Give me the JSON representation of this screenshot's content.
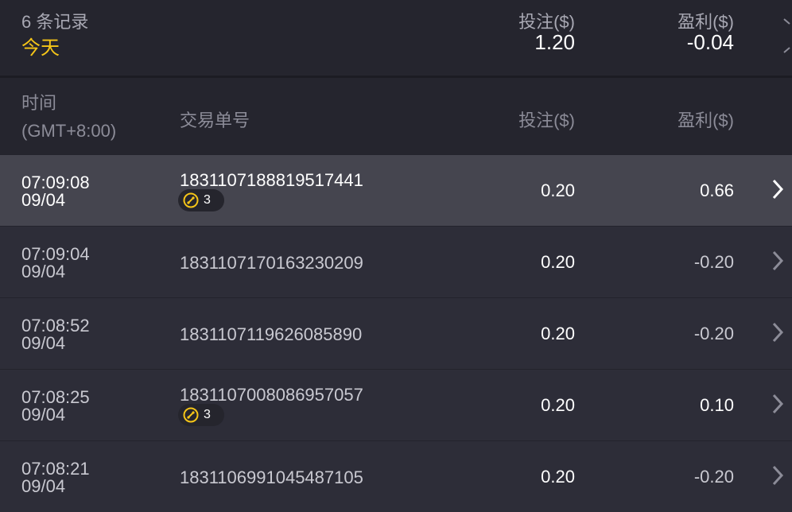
{
  "summary": {
    "count": "6 条记录",
    "period": "今天",
    "bet_label": "投注($)",
    "bet_value": "1.20",
    "profit_label": "盈利($)",
    "profit_value": "-0.04"
  },
  "columns": {
    "time": "时间",
    "timezone": "(GMT+8:00)",
    "order": "交易单号",
    "bet": "投注($)",
    "profit": "盈利($)"
  },
  "accent": "#f5c518",
  "rows": [
    {
      "time": "07:09:08",
      "date": "09/04",
      "order": "1831107188819517441",
      "badge": "3",
      "bet": "0.20",
      "profit": "0.66"
    },
    {
      "time": "07:09:04",
      "date": "09/04",
      "order": "1831107170163230209",
      "bet": "0.20",
      "profit": "-0.20"
    },
    {
      "time": "07:08:52",
      "date": "09/04",
      "order": "1831107119626085890",
      "bet": "0.20",
      "profit": "-0.20"
    },
    {
      "time": "07:08:25",
      "date": "09/04",
      "order": "1831107008086957057",
      "badge": "3",
      "bet": "0.20",
      "profit": "0.10"
    },
    {
      "time": "07:08:21",
      "date": "09/04",
      "order": "1831106991045487105",
      "bet": "0.20",
      "profit": "-0.20"
    }
  ]
}
